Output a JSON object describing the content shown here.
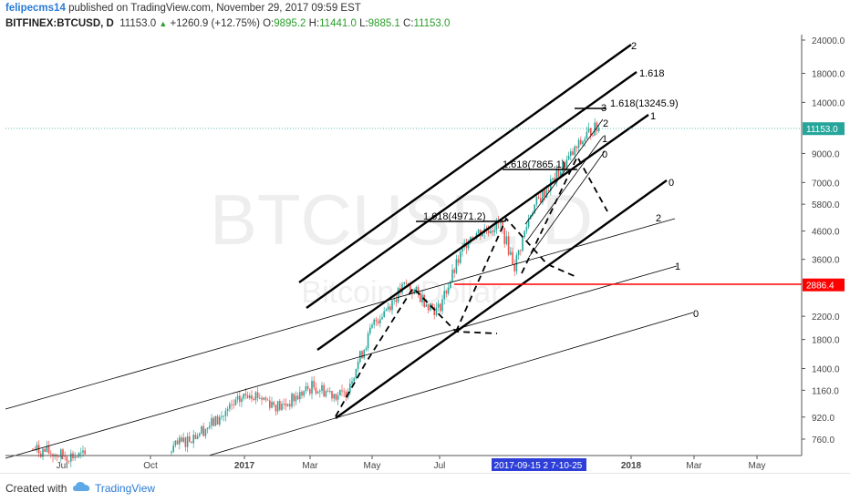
{
  "header": {
    "author": "felipecms14",
    "published_text": "published on TradingView.com, November 29, 2017 09:59 EST",
    "symbol": "BITFINEX:BTCUSD, D",
    "last": "11153.0",
    "change": "+1260.9 (+12.75%)",
    "o_label": "O:",
    "o_value": "9895.2",
    "h_label": "H:",
    "h_value": "11441.0",
    "l_label": "L:",
    "l_value": "9885.1",
    "c_label": "C:",
    "c_value": "11153.0"
  },
  "watermark": {
    "main": "BTCUSD, D",
    "sub": "Bitcoin / Dollar"
  },
  "footer": {
    "created_with": "Created with",
    "brand": "TradingView"
  },
  "chart_data": {
    "type": "candlestick",
    "scale": "log",
    "price_ticks": [
      "24000.0",
      "18000.0",
      "14000.0",
      "11153.0",
      "9000.0",
      "7000.0",
      "5800.0",
      "4600.0",
      "3600.0",
      "2886.4",
      "2200.0",
      "1800.0",
      "1400.0",
      "1160.0",
      "920.0",
      "760.0"
    ],
    "time_ticks": [
      "Jul",
      "Oct",
      "2017",
      "Mar",
      "May",
      "Jul",
      "2017-09-15 2 7-10-25",
      "2018",
      "Mar",
      "May"
    ],
    "current_price": {
      "value": 11153.0,
      "label": "11153.0",
      "color": "#26a69a"
    },
    "horizontal_level": {
      "value": 2886.4,
      "label": "2886.4",
      "color": "#ff0000"
    },
    "channel_labels": [
      "2",
      "1.618",
      "1",
      "0",
      "2",
      "1",
      "0"
    ],
    "fib_labels": [
      "1.618(13245.9)",
      "1.618(7865.1)",
      "1.618(4971.2)",
      "3",
      "2",
      "1",
      "0"
    ],
    "series": [
      {
        "date": "2016-06",
        "price": 700
      },
      {
        "date": "2016-07",
        "price": 660
      },
      {
        "date": "2016-10",
        "price": 640
      },
      {
        "date": "2016-12",
        "price": 900
      },
      {
        "date": "2017-01",
        "price": 1150
      },
      {
        "date": "2017-02",
        "price": 1000
      },
      {
        "date": "2017-03",
        "price": 1200
      },
      {
        "date": "2017-04",
        "price": 1100
      },
      {
        "date": "2017-05",
        "price": 2100
      },
      {
        "date": "2017-06",
        "price": 2900
      },
      {
        "date": "2017-07",
        "price": 2300
      },
      {
        "date": "2017-08",
        "price": 4400
      },
      {
        "date": "2017-09",
        "price": 4900
      },
      {
        "date": "2017-09-15",
        "price": 3400
      },
      {
        "date": "2017-10",
        "price": 5500
      },
      {
        "date": "2017-11",
        "price": 8000
      },
      {
        "date": "2017-11-29",
        "price": 11153
      }
    ],
    "colors": {
      "up": "#26a69a",
      "down": "#ef5350"
    }
  }
}
